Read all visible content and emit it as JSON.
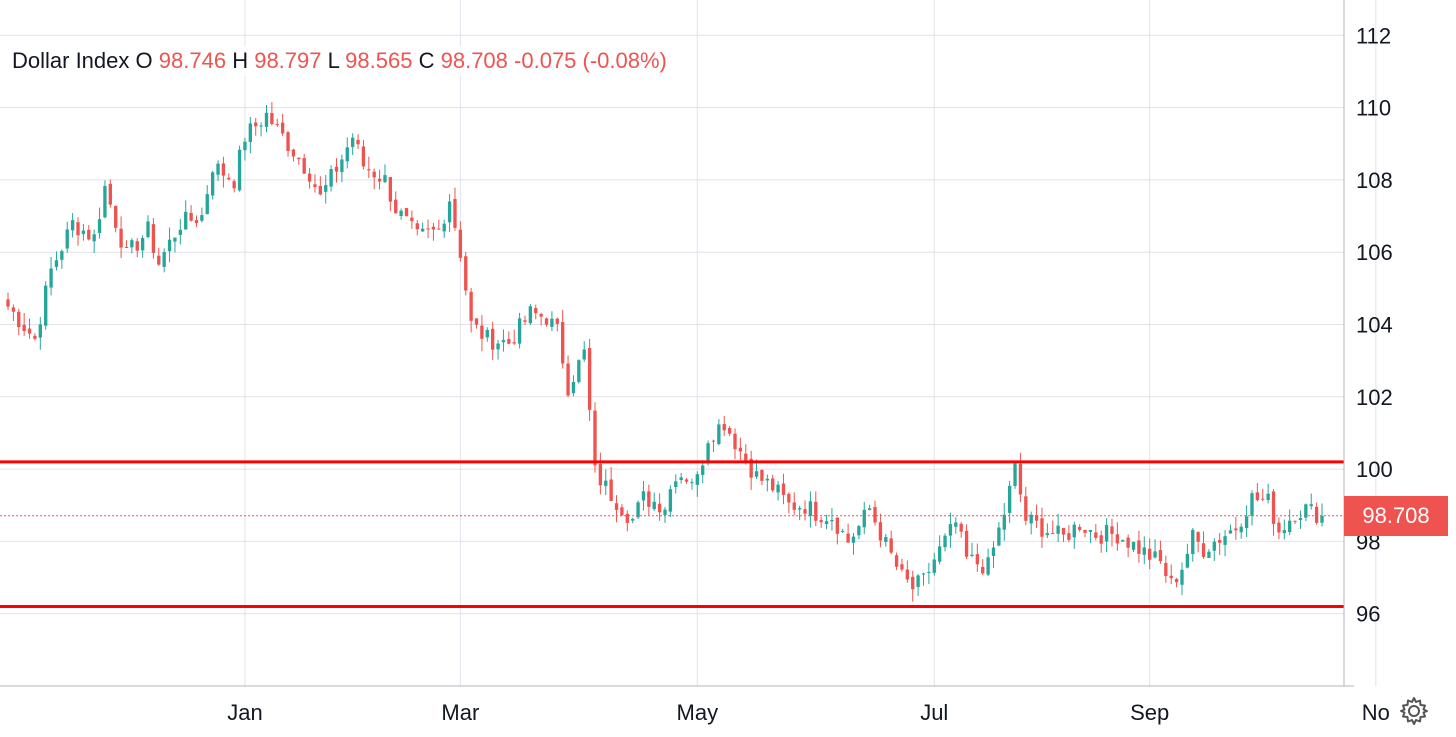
{
  "legend": {
    "symbol": "Dollar Index",
    "o_label": "O",
    "o": "98.746",
    "h_label": "H",
    "h": "98.797",
    "l_label": "L",
    "l": "98.565",
    "c_label": "C",
    "c": "98.708",
    "change": "-0.075 (-0.08%)"
  },
  "last_price_label": "98.708",
  "settings_icon": "gear-icon",
  "colors": {
    "up": "#26a69a",
    "down": "#ef5350",
    "level_line": "#ff0000",
    "grid": "#e0e3eb",
    "text": "#131722"
  },
  "chart_data": {
    "type": "candlestick",
    "y_ticks": [
      "96",
      "98",
      "100",
      "102",
      "104",
      "106",
      "108",
      "110",
      "112"
    ],
    "ylim": [
      94.0,
      112.7
    ],
    "x_ticks": [
      {
        "label": "Jan",
        "index": 44
      },
      {
        "label": "Mar",
        "index": 84
      },
      {
        "label": "May",
        "index": 128
      },
      {
        "label": "Jul",
        "index": 172
      },
      {
        "label": "Sep",
        "index": 212
      },
      {
        "label": "No",
        "index": 254
      }
    ],
    "horizontal_levels": [
      100.2,
      96.2
    ],
    "last_price": 98.708,
    "series_anchors": [
      [
        0,
        104.5
      ],
      [
        5,
        103.6
      ],
      [
        8,
        105.5
      ],
      [
        12,
        106.8
      ],
      [
        16,
        106.4
      ],
      [
        18,
        107.8
      ],
      [
        22,
        105.9
      ],
      [
        26,
        106.6
      ],
      [
        28,
        105.7
      ],
      [
        32,
        106.8
      ],
      [
        36,
        107.0
      ],
      [
        38,
        108.4
      ],
      [
        42,
        108.0
      ],
      [
        44,
        109.2
      ],
      [
        48,
        109.8
      ],
      [
        52,
        109.0
      ],
      [
        56,
        108.2
      ],
      [
        58,
        107.5
      ],
      [
        62,
        108.6
      ],
      [
        64,
        109.2
      ],
      [
        66,
        108.4
      ],
      [
        70,
        108.0
      ],
      [
        72,
        107.2
      ],
      [
        76,
        106.4
      ],
      [
        80,
        106.6
      ],
      [
        82,
        107.5
      ],
      [
        84,
        106.0
      ],
      [
        86,
        104.0
      ],
      [
        89,
        103.6
      ],
      [
        93,
        103.5
      ],
      [
        97,
        104.3
      ],
      [
        100,
        104.2
      ],
      [
        102,
        103.8
      ],
      [
        104,
        102.3
      ],
      [
        107,
        103.2
      ],
      [
        109,
        99.9
      ],
      [
        112,
        99.3
      ],
      [
        116,
        98.6
      ],
      [
        118,
        99.2
      ],
      [
        122,
        99.0
      ],
      [
        124,
        99.9
      ],
      [
        128,
        99.7
      ],
      [
        130,
        100.9
      ],
      [
        133,
        101.3
      ],
      [
        136,
        100.5
      ],
      [
        139,
        99.8
      ],
      [
        142,
        99.5
      ],
      [
        145,
        99.0
      ],
      [
        148,
        99.0
      ],
      [
        150,
        98.8
      ],
      [
        153,
        98.7
      ],
      [
        156,
        98.0
      ],
      [
        158,
        98.4
      ],
      [
        160,
        98.9
      ],
      [
        163,
        97.9
      ],
      [
        166,
        97.0
      ],
      [
        168,
        96.7
      ],
      [
        170,
        96.9
      ],
      [
        172,
        97.5
      ],
      [
        176,
        98.5
      ],
      [
        178,
        97.5
      ],
      [
        182,
        97.3
      ],
      [
        185,
        98.8
      ],
      [
        187,
        100.0
      ],
      [
        189,
        98.6
      ],
      [
        193,
        98.3
      ],
      [
        196,
        98.1
      ],
      [
        199,
        98.5
      ],
      [
        202,
        98.2
      ],
      [
        206,
        98.2
      ],
      [
        209,
        97.9
      ],
      [
        212,
        97.6
      ],
      [
        214,
        97.4
      ],
      [
        216,
        96.8
      ],
      [
        218,
        97.3
      ],
      [
        220,
        98.1
      ],
      [
        222,
        97.8
      ],
      [
        225,
        98.1
      ],
      [
        228,
        98.4
      ],
      [
        231,
        99.2
      ],
      [
        234,
        99.1
      ],
      [
        236,
        98.3
      ],
      [
        239,
        98.8
      ],
      [
        241,
        98.9
      ],
      [
        244,
        98.708
      ]
    ],
    "n_points": 245
  }
}
